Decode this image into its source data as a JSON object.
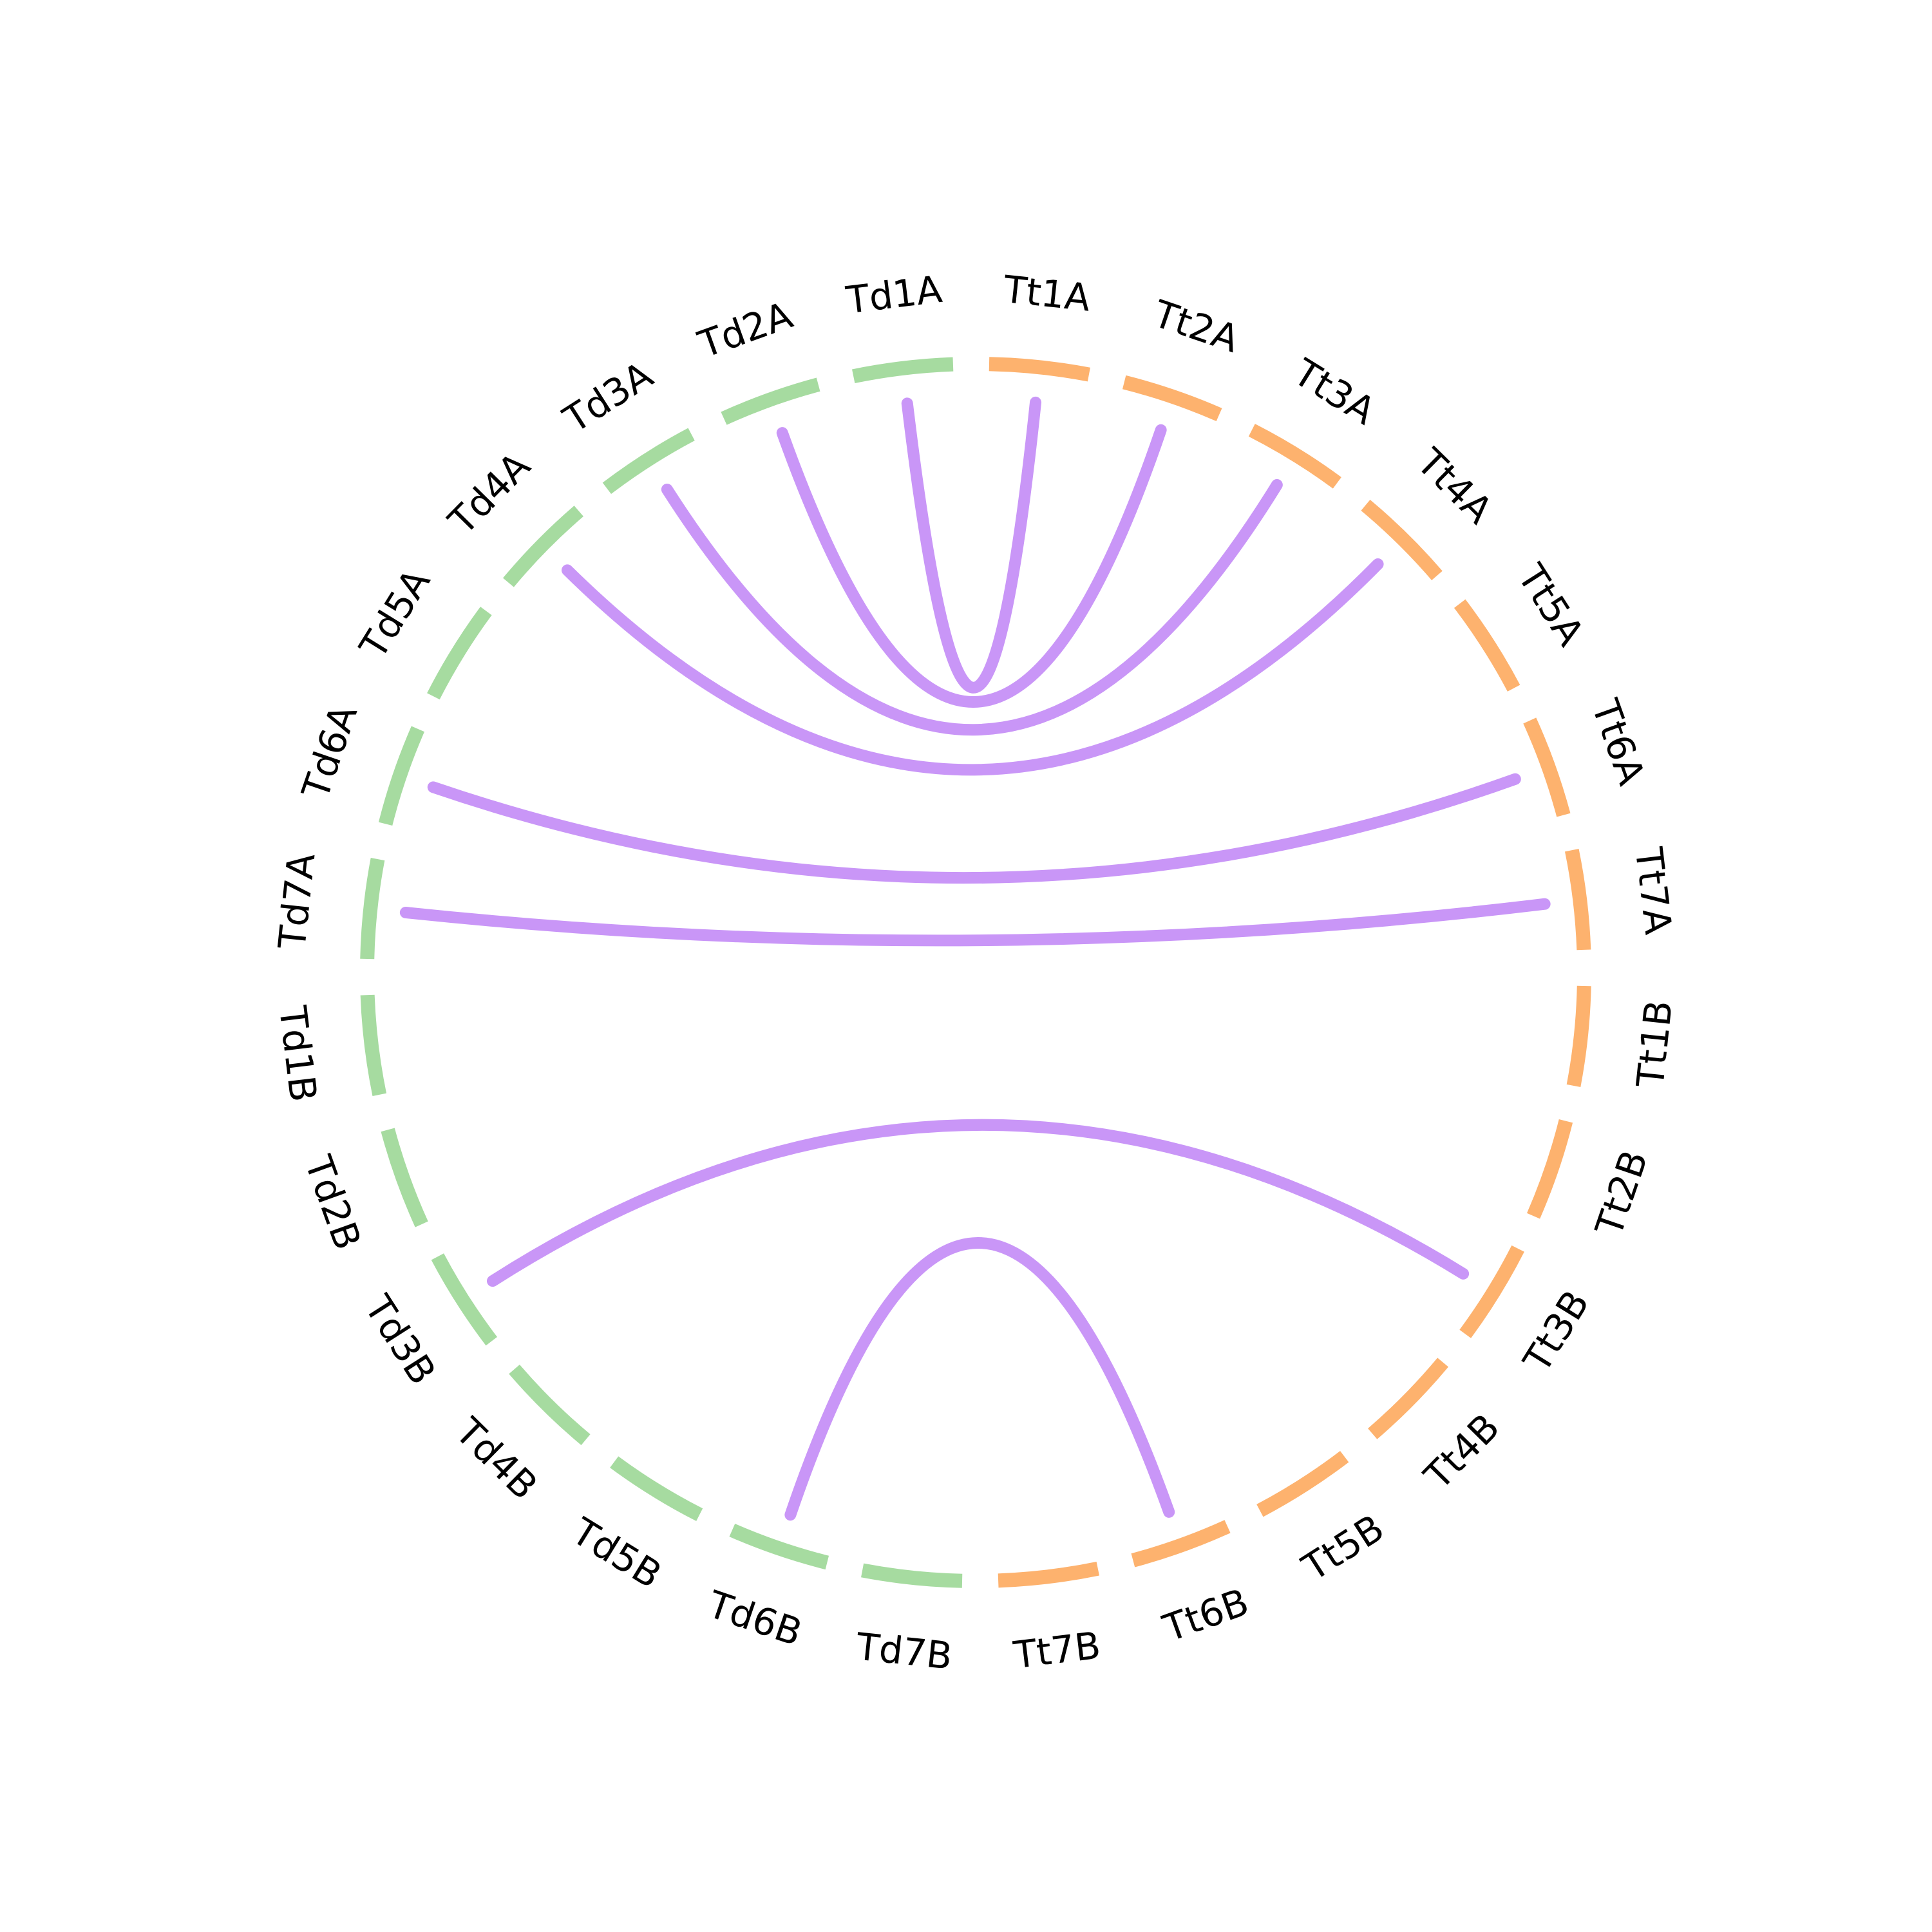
{
  "colors": {
    "Td": "#a6dba0",
    "Tt": "#fdb26e",
    "link": "#c996f7"
  },
  "segments": [
    {
      "label": "Tt1A",
      "group": "Tt"
    },
    {
      "label": "Tt2A",
      "group": "Tt"
    },
    {
      "label": "Tt3A",
      "group": "Tt"
    },
    {
      "label": "Tt4A",
      "group": "Tt"
    },
    {
      "label": "Tt5A",
      "group": "Tt"
    },
    {
      "label": "Tt6A",
      "group": "Tt"
    },
    {
      "label": "Tt7A",
      "group": "Tt"
    },
    {
      "label": "Tt1B",
      "group": "Tt"
    },
    {
      "label": "Tt2B",
      "group": "Tt"
    },
    {
      "label": "Tt3B",
      "group": "Tt"
    },
    {
      "label": "Tt4B",
      "group": "Tt"
    },
    {
      "label": "Tt5B",
      "group": "Tt"
    },
    {
      "label": "Tt6B",
      "group": "Tt"
    },
    {
      "label": "Tt7B",
      "group": "Tt"
    },
    {
      "label": "Td7B",
      "group": "Td"
    },
    {
      "label": "Td6B",
      "group": "Td"
    },
    {
      "label": "Td5B",
      "group": "Td"
    },
    {
      "label": "Td4B",
      "group": "Td"
    },
    {
      "label": "Td3B",
      "group": "Td"
    },
    {
      "label": "Td2B",
      "group": "Td"
    },
    {
      "label": "Td1B",
      "group": "Td"
    },
    {
      "label": "Td7A",
      "group": "Td"
    },
    {
      "label": "Td6A",
      "group": "Td"
    },
    {
      "label": "Td5A",
      "group": "Td"
    },
    {
      "label": "Td4A",
      "group": "Td"
    },
    {
      "label": "Td3A",
      "group": "Td"
    },
    {
      "label": "Td2A",
      "group": "Td"
    },
    {
      "label": "Td1A",
      "group": "Td"
    }
  ],
  "links": [
    {
      "from": "Td1A",
      "to": "Tt1A"
    },
    {
      "from": "Td2A",
      "to": "Tt2A"
    },
    {
      "from": "Td3A",
      "to": "Tt3A"
    },
    {
      "from": "Td4A",
      "to": "Tt4A"
    },
    {
      "from": "Td6A",
      "to": "Tt6A"
    },
    {
      "from": "Td7A",
      "to": "Tt7A"
    },
    {
      "from": "Td3B",
      "to": "Tt3B"
    },
    {
      "from": "Td6B",
      "to": "Tt6B"
    }
  ]
}
